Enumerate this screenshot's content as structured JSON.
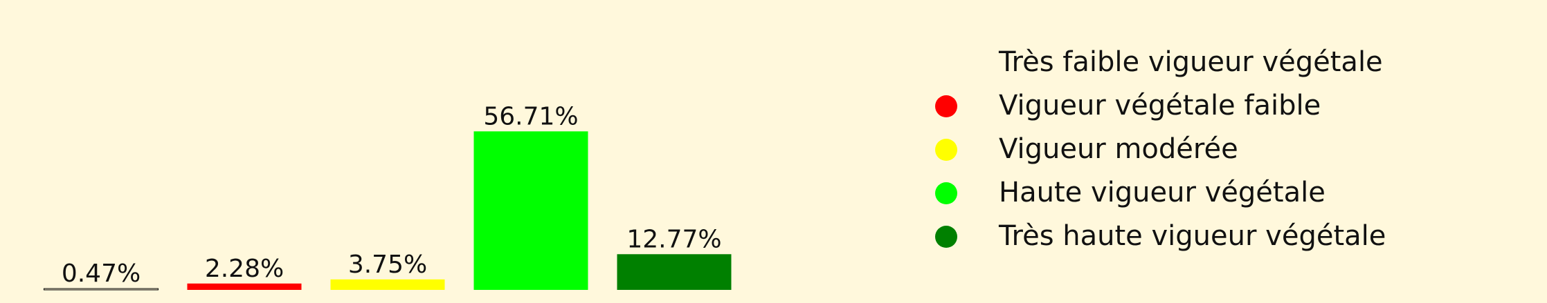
{
  "chart_data": {
    "type": "bar",
    "title": "",
    "xlabel": "",
    "ylabel": "",
    "categories": [
      "Très faible vigueur végétale",
      "Vigueur végétale faible",
      "Vigueur modérée",
      "Haute vigueur végétale",
      "Très haute vigueur végétale"
    ],
    "values": [
      0.47,
      2.28,
      3.75,
      56.71,
      12.77
    ],
    "value_labels": [
      "0.47%",
      "2.28%",
      "3.75%",
      "56.71%",
      "12.77%"
    ],
    "colors": [
      "#fff8dc",
      "#ff0000",
      "#ffff00",
      "#00ff00",
      "#008000"
    ],
    "ylim": [
      0,
      60
    ],
    "axes_visible": false,
    "grid": false,
    "legend_position": "right",
    "legend": [
      {
        "label": "Très faible vigueur végétale",
        "color": "#fff8dc"
      },
      {
        "label": "Vigueur végétale faible",
        "color": "#ff0000"
      },
      {
        "label": "Vigueur modérée",
        "color": "#ffff00"
      },
      {
        "label": "Haute vigueur végétale",
        "color": "#00ff00"
      },
      {
        "label": "Très haute vigueur végétale",
        "color": "#008000"
      }
    ]
  },
  "background_color": "#fff8dc"
}
